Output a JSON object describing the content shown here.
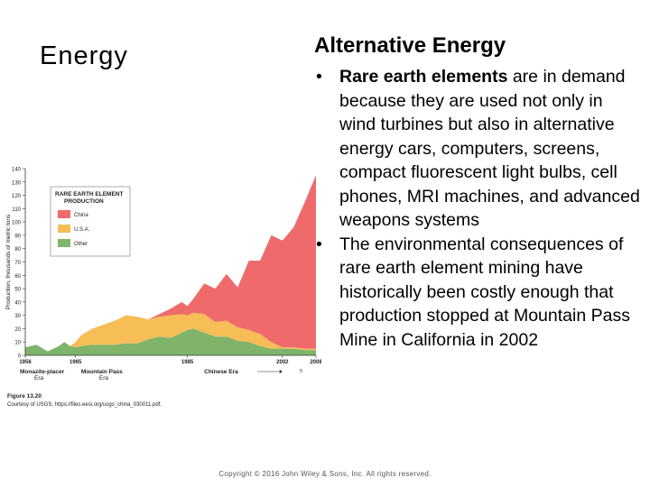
{
  "slide": {
    "section_title": "Energy",
    "heading": "Alternative Energy",
    "bullet_marker": "•",
    "bullets": [
      {
        "bold": "Rare earth elements",
        "rest": " are in demand because they are used not only in wind turbines but also in alternative energy cars, computers, screens, compact fluorescent light bulbs, cell phones, MRI machines, and advanced weapons systems"
      },
      {
        "bold": "",
        "rest": "The environmental consequences of rare earth element mining have historically been costly enough that production stopped at Mountain Pass Mine in California in 2002"
      }
    ],
    "footer": "Copyright © 2016 John Wiley & Sons, Inc. All rights reserved."
  },
  "chart_data": {
    "type": "area",
    "stacked": true,
    "title": "RARE EARTH ELEMENT PRODUCTION",
    "ylabel": "Production, thousands of metric tons",
    "ylim": [
      0,
      140
    ],
    "yticks": [
      0,
      10,
      20,
      30,
      40,
      50,
      60,
      70,
      80,
      90,
      100,
      110,
      120,
      130,
      140
    ],
    "xlim": [
      1956,
      2008
    ],
    "xticks": [
      "1956",
      "1965",
      "1985",
      "2002",
      "2008"
    ],
    "xtick_values": [
      1956,
      1965,
      1985,
      2002,
      2008
    ],
    "eras": [
      {
        "name": "Monazite-placer",
        "sub": "Era"
      },
      {
        "name": "Mountain Pass",
        "sub": "Era"
      },
      {
        "name": "Chinese Era",
        "sub": ""
      }
    ],
    "chinese_era_end": "?",
    "figure_label": "Figure 13.20",
    "credit": "Courtesy of USGS, https://files.eesi.org/usgs_china_030011.pdf.",
    "grid": false,
    "legend_position": "top-left",
    "series": [
      {
        "name": "Other",
        "color": "#7fb46a",
        "x": [
          1956,
          1958,
          1960,
          1962,
          1963,
          1964,
          1965,
          1966,
          1968,
          1970,
          1972,
          1974,
          1976,
          1978,
          1980,
          1982,
          1984,
          1985,
          1986,
          1988,
          1990,
          1992,
          1994,
          1996,
          1998,
          2000,
          2002,
          2004,
          2006,
          2008
        ],
        "values": [
          6,
          8,
          3,
          7,
          10,
          7,
          6,
          7,
          8,
          8,
          8,
          9,
          9,
          12,
          14,
          13,
          17,
          19,
          20,
          17,
          14,
          14,
          11,
          10,
          7,
          5,
          5,
          5,
          4,
          4
        ]
      },
      {
        "name": "U.S.A.",
        "color": "#f7bd57",
        "x": [
          1956,
          1958,
          1960,
          1962,
          1963,
          1964,
          1965,
          1966,
          1968,
          1970,
          1972,
          1974,
          1976,
          1978,
          1980,
          1982,
          1984,
          1985,
          1986,
          1988,
          1990,
          1992,
          1994,
          1996,
          1998,
          2000,
          2002,
          2004,
          2006,
          2008
        ],
        "values": [
          0,
          0,
          0,
          0,
          0,
          0,
          4,
          8,
          12,
          15,
          18,
          21,
          20,
          15,
          15,
          17,
          14,
          11,
          12,
          14,
          11,
          12,
          10,
          9,
          9,
          5,
          1,
          1,
          1,
          1
        ]
      },
      {
        "name": "China",
        "color": "#ef6b6b",
        "x": [
          1956,
          1958,
          1960,
          1962,
          1963,
          1964,
          1965,
          1966,
          1968,
          1970,
          1972,
          1974,
          1976,
          1978,
          1980,
          1982,
          1984,
          1985,
          1986,
          1988,
          1990,
          1992,
          1994,
          1996,
          1998,
          2000,
          2002,
          2004,
          2006,
          2008
        ],
        "values": [
          0,
          0,
          0,
          0,
          0,
          0,
          0,
          0,
          0,
          0,
          0,
          0,
          0,
          0,
          2,
          5,
          9,
          7,
          10,
          23,
          25,
          35,
          30,
          52,
          55,
          80,
          80,
          90,
          110,
          130
        ]
      }
    ]
  }
}
